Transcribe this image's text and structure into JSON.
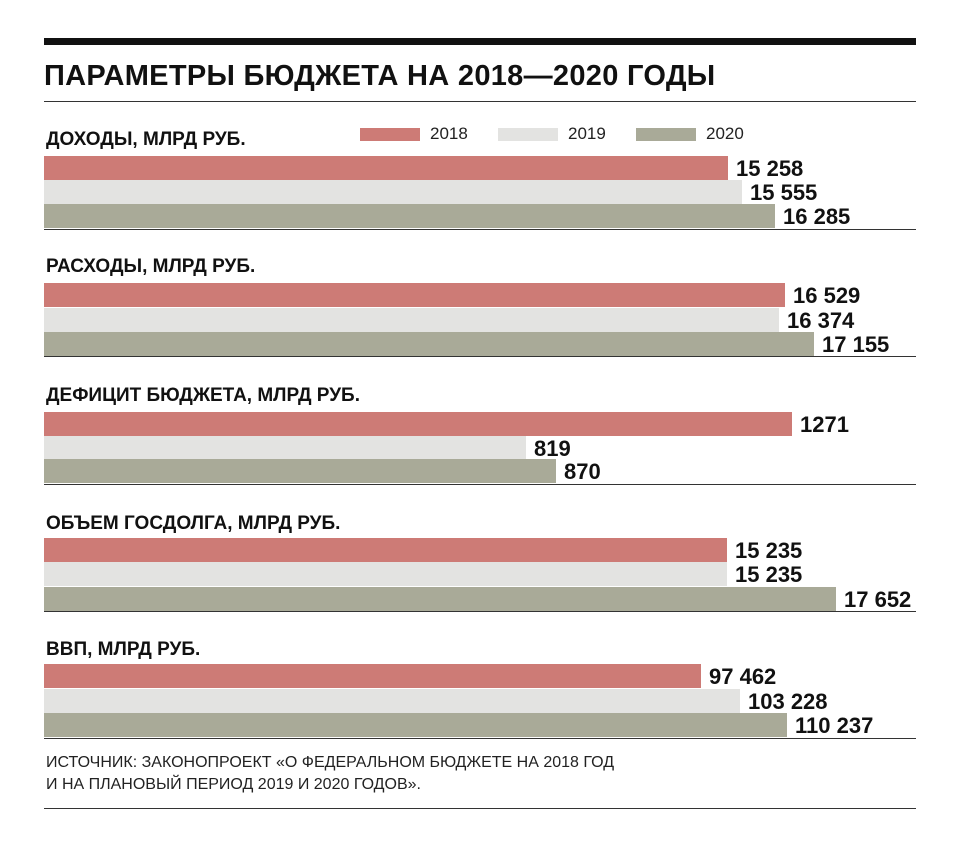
{
  "title": "ПАРАМЕТРЫ БЮДЖЕТА НА 2018—2020 ГОДЫ",
  "colors": {
    "2018": "#cd7b76",
    "2019": "#e3e3e1",
    "2020": "#a9aa98"
  },
  "legend": [
    {
      "label": "2018",
      "color": "#cd7b76"
    },
    {
      "label": "2019",
      "color": "#e3e3e1"
    },
    {
      "label": "2020",
      "color": "#a9aa98"
    }
  ],
  "chart_data": [
    {
      "type": "bar",
      "title": "ДОХОДЫ, МЛРД РУБ.",
      "categories": [
        "2018",
        "2019",
        "2020"
      ],
      "values": [
        15258,
        15555,
        16285
      ],
      "labels": [
        "15 258",
        "15 555",
        "16 285"
      ]
    },
    {
      "type": "bar",
      "title": "РАСХОДЫ, МЛРД РУБ.",
      "categories": [
        "2018",
        "2019",
        "2020"
      ],
      "values": [
        16529,
        16374,
        17155
      ],
      "labels": [
        "16 529",
        "16 374",
        "17 155"
      ]
    },
    {
      "type": "bar",
      "title": "ДЕФИЦИТ БЮДЖЕТА, МЛРД РУБ.",
      "categories": [
        "2018",
        "2019",
        "2020"
      ],
      "values": [
        1271,
        819,
        870
      ],
      "labels": [
        "1271",
        "819",
        "870"
      ]
    },
    {
      "type": "bar",
      "title": "ОБЪЕМ ГОСДОЛГА, МЛРД РУБ.",
      "categories": [
        "2018",
        "2019",
        "2020"
      ],
      "values": [
        15235,
        15235,
        17652
      ],
      "labels": [
        "15 235",
        "15 235",
        "17 652"
      ]
    },
    {
      "type": "bar",
      "title": "ВВП, МЛРД РУБ.",
      "categories": [
        "2018",
        "2019",
        "2020"
      ],
      "values": [
        97462,
        103228,
        110237
      ],
      "labels": [
        "97 462",
        "103 228",
        "110 237"
      ]
    }
  ],
  "source": {
    "line1": "ИСТОЧНИК: ЗАКОНОПРОЕКТ «О ФЕДЕРАЛЬНОМ БЮДЖЕТЕ НА 2018 ГОД",
    "line2": "И НА ПЛАНОВЫЙ ПЕРИОД 2019 И 2020 ГОДОВ»."
  }
}
